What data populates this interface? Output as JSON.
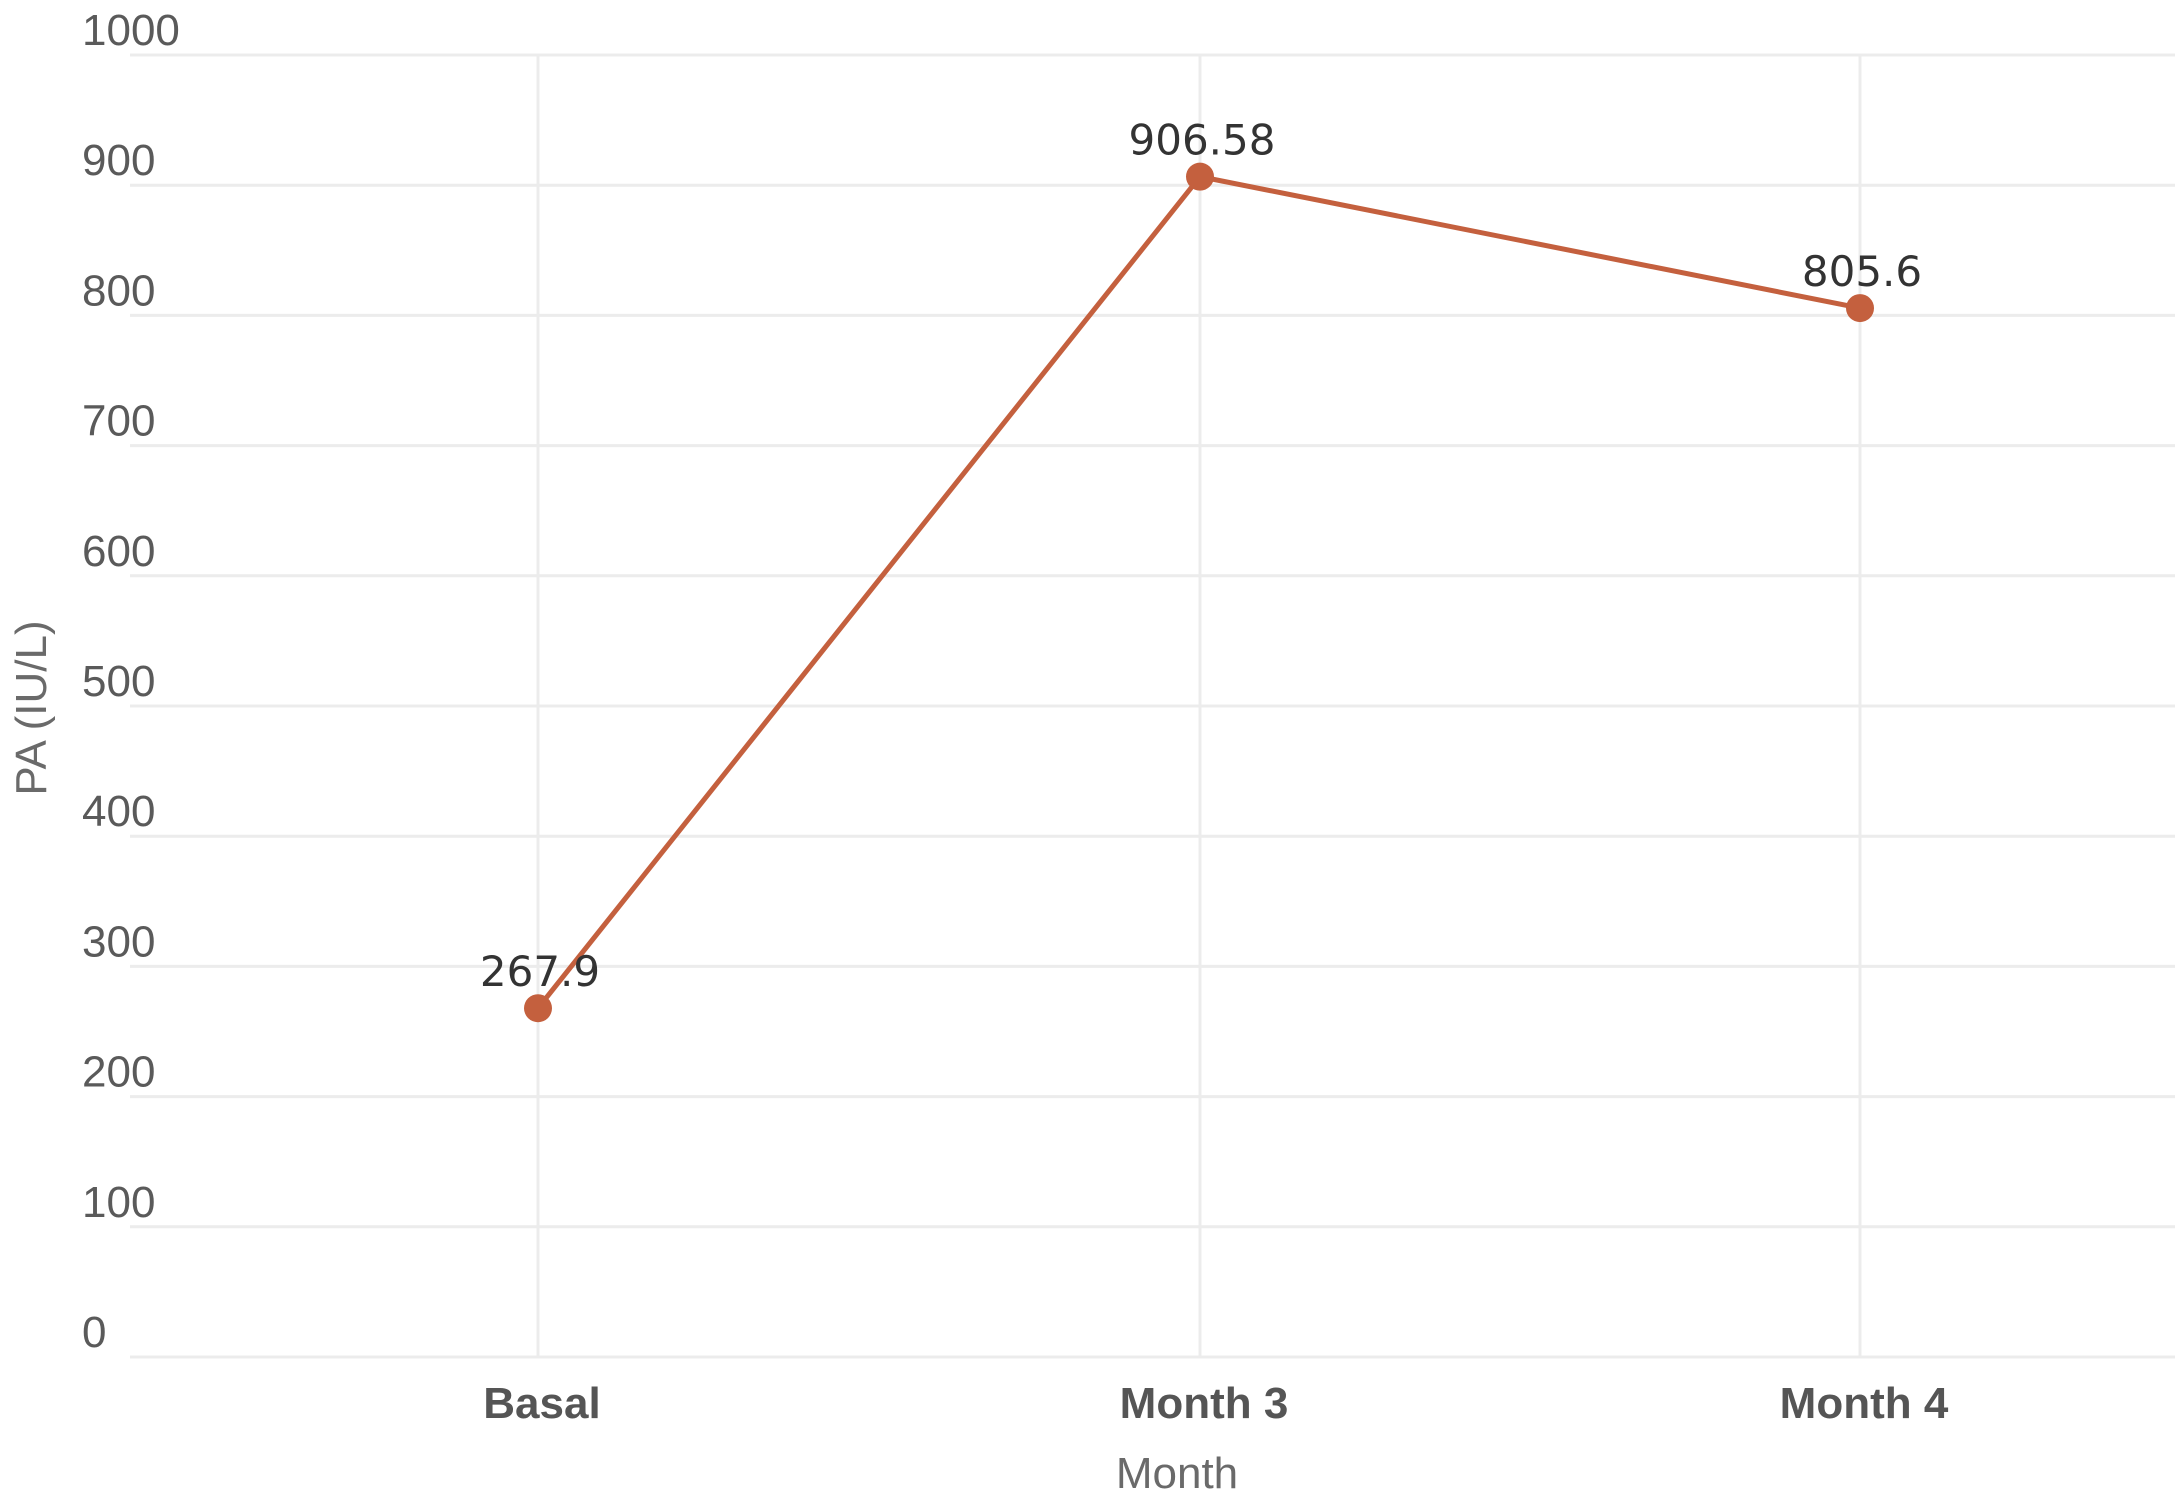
{
  "chart_data": {
    "type": "line",
    "title": "",
    "xlabel": "Month",
    "ylabel": "PA (IU/L)",
    "categories": [
      "Basal",
      "Month 3",
      "Month 4"
    ],
    "series": [
      {
        "values": [
          267.9,
          906.58,
          805.6
        ],
        "data_labels": [
          "267.9",
          "906.58",
          "805.6"
        ]
      }
    ],
    "ylim": [
      0,
      1000
    ],
    "yticks": [
      "0",
      "100",
      "200",
      "300",
      "400",
      "500",
      "600",
      "700",
      "800",
      "900",
      "1000"
    ],
    "grid": true,
    "legend": "none",
    "colors": {
      "series": "#c4603e",
      "grid": "#ececec",
      "tick_text": "#5a5a5a"
    }
  }
}
